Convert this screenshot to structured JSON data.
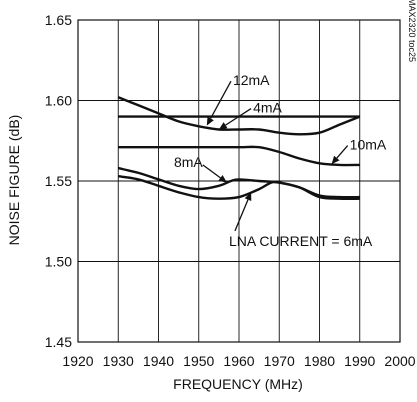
{
  "chart_data": {
    "type": "line",
    "xlabel": "FREQUENCY (MHz)",
    "ylabel": "NOISE FIGURE (dB)",
    "xlim": [
      1920,
      2000
    ],
    "ylim": [
      1.45,
      1.65
    ],
    "x_ticks": [
      "1920",
      "1930",
      "1940",
      "1950",
      "1960",
      "1970",
      "1980",
      "1990",
      "2000"
    ],
    "y_ticks": [
      "1.45",
      "1.50",
      "1.55",
      "1.60",
      "1.65"
    ],
    "grid": true,
    "figure_code": "MAX2320 toc25",
    "series": [
      {
        "name": "12mA",
        "x": [
          1930,
          1935,
          1940,
          1945,
          1950,
          1955,
          1960,
          1965,
          1970,
          1975,
          1980,
          1985,
          1990
        ],
        "y": [
          1.602,
          1.597,
          1.592,
          1.587,
          1.584,
          1.582,
          1.582,
          1.582,
          1.58,
          1.579,
          1.58,
          1.585,
          1.59
        ]
      },
      {
        "name": "4mA",
        "x": [
          1930,
          1990
        ],
        "y": [
          1.59,
          1.59
        ]
      },
      {
        "name": "10mA",
        "x": [
          1930,
          1940,
          1950,
          1955,
          1960,
          1965,
          1970,
          1975,
          1980,
          1985,
          1990
        ],
        "y": [
          1.571,
          1.571,
          1.571,
          1.571,
          1.571,
          1.571,
          1.568,
          1.564,
          1.561,
          1.56,
          1.56
        ]
      },
      {
        "name": "8mA",
        "x": [
          1930,
          1935,
          1940,
          1945,
          1950,
          1955,
          1958,
          1960,
          1965,
          1970,
          1975,
          1980,
          1985,
          1990
        ],
        "y": [
          1.558,
          1.555,
          1.551,
          1.547,
          1.545,
          1.547,
          1.55,
          1.551,
          1.55,
          1.549,
          1.546,
          1.541,
          1.54,
          1.54
        ]
      },
      {
        "name": "LNA CURRENT = 6mA",
        "x": [
          1930,
          1935,
          1940,
          1945,
          1950,
          1955,
          1960,
          1965,
          1968,
          1970,
          1975,
          1980,
          1985,
          1990
        ],
        "y": [
          1.553,
          1.551,
          1.547,
          1.543,
          1.54,
          1.539,
          1.54,
          1.545,
          1.549,
          1.549,
          1.546,
          1.54,
          1.539,
          1.539
        ]
      }
    ],
    "annotations": [
      {
        "text": "12mA",
        "series": "12mA",
        "at": [
          1952,
          1.5845
        ],
        "label_at": [
          1958,
          1.612
        ]
      },
      {
        "text": "4mA",
        "series": "4mA",
        "at": [
          1955,
          1.582
        ],
        "label_at": [
          1963,
          1.595
        ]
      },
      {
        "text": "10mA",
        "series": "10mA",
        "at": [
          1983,
          1.5605
        ],
        "label_at": [
          1987,
          1.572
        ]
      },
      {
        "text": "8mA",
        "series": "8mA",
        "at": [
          1957,
          1.549
        ],
        "label_at": [
          1951,
          1.56
        ]
      },
      {
        "text": "LNA CURRENT = 6mA",
        "series": "LNA CURRENT = 6mA",
        "at": [
          1963,
          1.543
        ],
        "label_at": [
          1959,
          1.519
        ]
      }
    ]
  }
}
